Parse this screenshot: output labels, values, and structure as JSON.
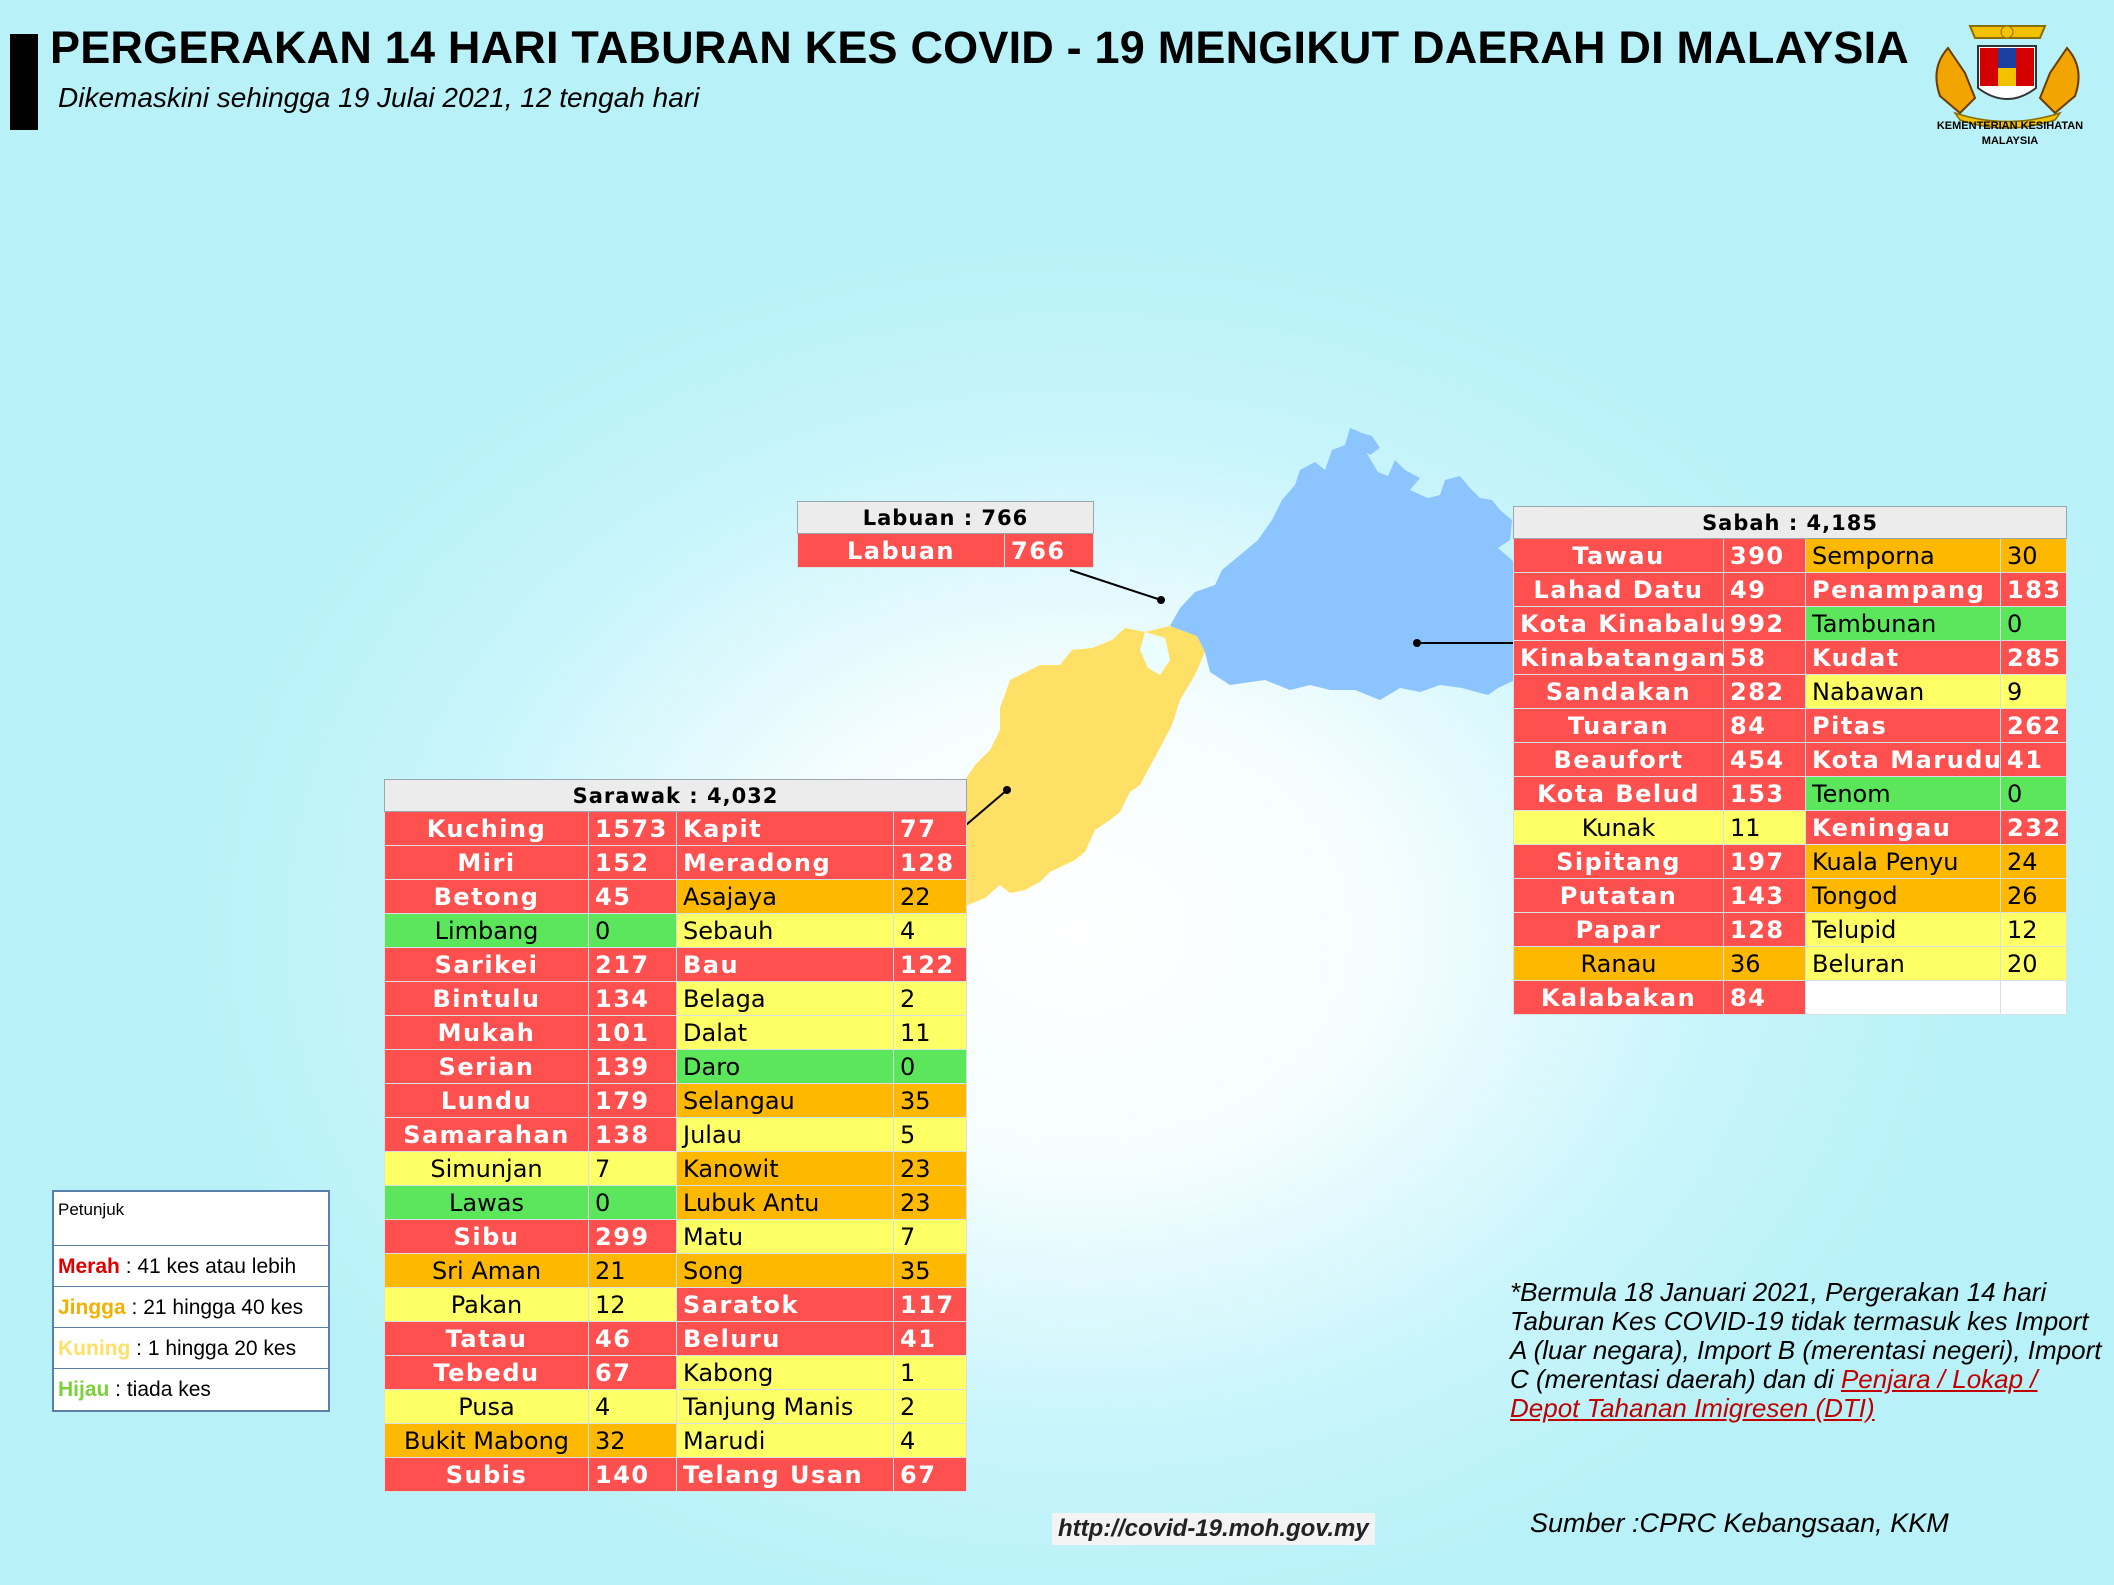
{
  "header": {
    "title": "PERGERAKAN 14 HARI TABURAN KES COVID - 19 MENGIKUT DAERAH DI MALAYSIA",
    "subtitle": "Dikemaskini sehingga 19 Julai 2021, 12 tengah hari"
  },
  "logo": {
    "line1": "KEMENTERIAN KESIHATAN",
    "line2": "MALAYSIA"
  },
  "colors": {
    "merah": "#ff5050",
    "jingga": "#ffb800",
    "kuning": "#ffff66",
    "hijau": "#5ce65c",
    "sabah_map": "#8cc4ff",
    "sarawak_map": "#ffe066"
  },
  "labuan": {
    "header": "Labuan : 766",
    "rows": [
      {
        "name": "Labuan",
        "cases": "766",
        "color": "red"
      }
    ]
  },
  "sabah": {
    "header": "Sabah : 4,185",
    "rows": [
      [
        {
          "name": "Tawau",
          "cases": "390",
          "color": "red"
        },
        {
          "name": "Semporna",
          "cases": "30",
          "color": "orange"
        }
      ],
      [
        {
          "name": "Lahad Datu",
          "cases": "49",
          "color": "red"
        },
        {
          "name": "Penampang",
          "cases": "183",
          "color": "red"
        }
      ],
      [
        {
          "name": "Kota Kinabalu",
          "cases": "992",
          "color": "red"
        },
        {
          "name": "Tambunan",
          "cases": "0",
          "color": "green"
        }
      ],
      [
        {
          "name": "Kinabatangan",
          "cases": "58",
          "color": "red"
        },
        {
          "name": "Kudat",
          "cases": "285",
          "color": "red"
        }
      ],
      [
        {
          "name": "Sandakan",
          "cases": "282",
          "color": "red"
        },
        {
          "name": "Nabawan",
          "cases": "9",
          "color": "yellow"
        }
      ],
      [
        {
          "name": "Tuaran",
          "cases": "84",
          "color": "red"
        },
        {
          "name": "Pitas",
          "cases": "262",
          "color": "red"
        }
      ],
      [
        {
          "name": "Beaufort",
          "cases": "454",
          "color": "red"
        },
        {
          "name": "Kota Marudu",
          "cases": "41",
          "color": "red"
        }
      ],
      [
        {
          "name": "Kota Belud",
          "cases": "153",
          "color": "red"
        },
        {
          "name": "Tenom",
          "cases": "0",
          "color": "green"
        }
      ],
      [
        {
          "name": "Kunak",
          "cases": "11",
          "color": "yellow"
        },
        {
          "name": "Keningau",
          "cases": "232",
          "color": "red"
        }
      ],
      [
        {
          "name": "Sipitang",
          "cases": "197",
          "color": "red"
        },
        {
          "name": "Kuala Penyu",
          "cases": "24",
          "color": "orange"
        }
      ],
      [
        {
          "name": "Putatan",
          "cases": "143",
          "color": "red"
        },
        {
          "name": "Tongod",
          "cases": "26",
          "color": "orange"
        }
      ],
      [
        {
          "name": "Papar",
          "cases": "128",
          "color": "red"
        },
        {
          "name": "Telupid",
          "cases": "12",
          "color": "yellow"
        }
      ],
      [
        {
          "name": "Ranau",
          "cases": "36",
          "color": "orange"
        },
        {
          "name": "Beluran",
          "cases": "20",
          "color": "yellow"
        }
      ],
      [
        {
          "name": "Kalabakan",
          "cases": "84",
          "color": "red"
        },
        {
          "name": "",
          "cases": "",
          "color": "empty"
        }
      ]
    ]
  },
  "sarawak": {
    "header": "Sarawak : 4,032",
    "rows": [
      [
        {
          "name": "Kuching",
          "cases": "1573",
          "color": "red"
        },
        {
          "name": "Kapit",
          "cases": "77",
          "color": "red"
        }
      ],
      [
        {
          "name": "Miri",
          "cases": "152",
          "color": "red"
        },
        {
          "name": "Meradong",
          "cases": "128",
          "color": "red"
        }
      ],
      [
        {
          "name": "Betong",
          "cases": "45",
          "color": "red"
        },
        {
          "name": "Asajaya",
          "cases": "22",
          "color": "orange"
        }
      ],
      [
        {
          "name": "Limbang",
          "cases": "0",
          "color": "green"
        },
        {
          "name": "Sebauh",
          "cases": "4",
          "color": "yellow"
        }
      ],
      [
        {
          "name": "Sarikei",
          "cases": "217",
          "color": "red"
        },
        {
          "name": "Bau",
          "cases": "122",
          "color": "red"
        }
      ],
      [
        {
          "name": "Bintulu",
          "cases": "134",
          "color": "red"
        },
        {
          "name": "Belaga",
          "cases": "2",
          "color": "yellow"
        }
      ],
      [
        {
          "name": "Mukah",
          "cases": "101",
          "color": "red"
        },
        {
          "name": "Dalat",
          "cases": "11",
          "color": "yellow"
        }
      ],
      [
        {
          "name": "Serian",
          "cases": "139",
          "color": "red"
        },
        {
          "name": "Daro",
          "cases": "0",
          "color": "green"
        }
      ],
      [
        {
          "name": "Lundu",
          "cases": "179",
          "color": "red"
        },
        {
          "name": "Selangau",
          "cases": "35",
          "color": "orange"
        }
      ],
      [
        {
          "name": "Samarahan",
          "cases": "138",
          "color": "red"
        },
        {
          "name": "Julau",
          "cases": "5",
          "color": "yellow"
        }
      ],
      [
        {
          "name": "Simunjan",
          "cases": "7",
          "color": "yellow"
        },
        {
          "name": "Kanowit",
          "cases": "23",
          "color": "orange"
        }
      ],
      [
        {
          "name": "Lawas",
          "cases": "0",
          "color": "green"
        },
        {
          "name": "Lubuk Antu",
          "cases": "23",
          "color": "orange"
        }
      ],
      [
        {
          "name": "Sibu",
          "cases": "299",
          "color": "red"
        },
        {
          "name": "Matu",
          "cases": "7",
          "color": "yellow"
        }
      ],
      [
        {
          "name": "Sri Aman",
          "cases": "21",
          "color": "orange"
        },
        {
          "name": "Song",
          "cases": "35",
          "color": "orange"
        }
      ],
      [
        {
          "name": "Pakan",
          "cases": "12",
          "color": "yellow"
        },
        {
          "name": "Saratok",
          "cases": "117",
          "color": "red"
        }
      ],
      [
        {
          "name": "Tatau",
          "cases": "46",
          "color": "red"
        },
        {
          "name": "Beluru",
          "cases": "41",
          "color": "red"
        }
      ],
      [
        {
          "name": "Tebedu",
          "cases": "67",
          "color": "red"
        },
        {
          "name": "Kabong",
          "cases": "1",
          "color": "yellow"
        }
      ],
      [
        {
          "name": "Pusa",
          "cases": "4",
          "color": "yellow"
        },
        {
          "name": "Tanjung Manis",
          "cases": "2",
          "color": "yellow"
        }
      ],
      [
        {
          "name": "Bukit Mabong",
          "cases": "32",
          "color": "orange"
        },
        {
          "name": "Marudi",
          "cases": "4",
          "color": "yellow"
        }
      ],
      [
        {
          "name": "Subis",
          "cases": "140",
          "color": "red"
        },
        {
          "name": "Telang Usan",
          "cases": "67",
          "color": "red"
        }
      ]
    ]
  },
  "legend": {
    "title": "Petunjuk",
    "items": [
      {
        "key": "Merah",
        "desc": " : 41 kes atau lebih",
        "color": "#e00000"
      },
      {
        "key": "Jingga",
        "desc": " : 21 hingga 40 kes",
        "color": "#f2b000"
      },
      {
        "key": "Kuning",
        "desc": " : 1 hingga 20 kes",
        "color": "#ffe066"
      },
      {
        "key": "Hijau",
        "desc": " : tiada kes",
        "color": "#7bd13a"
      }
    ]
  },
  "note": {
    "text": "*Bermula 18 Januari 2021, Pergerakan 14 hari Taburan Kes COVID-19 tidak termasuk kes Import A (luar negara), Import B (merentasi negeri), Import C (merentasi daerah) dan di ",
    "link": "Penjara / Lokap / Depot Tahanan Imigresen (DTI)"
  },
  "source": "Sumber :CPRC Kebangsaan,  KKM",
  "url": "http://covid-19.moh.gov.my"
}
